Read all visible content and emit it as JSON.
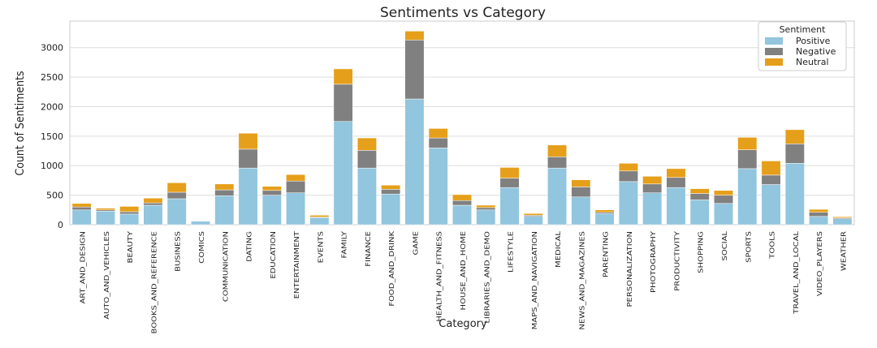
{
  "chart_data": {
    "type": "bar",
    "stacked": true,
    "title": "Sentiments vs Category",
    "xlabel": "Category",
    "ylabel": "Count of Sentiments",
    "ylim": [
      0,
      3450
    ],
    "yticks": [
      0,
      500,
      1000,
      1500,
      2000,
      2500,
      3000
    ],
    "grid": true,
    "legend": {
      "title": "Sentiment",
      "placement": "top-right"
    },
    "categories": [
      "ART_AND_DESIGN",
      "AUTO_AND_VEHICLES",
      "BEAUTY",
      "BOOKS_AND_REFERENCE",
      "BUSINESS",
      "COMICS",
      "COMMUNICATION",
      "DATING",
      "EDUCATION",
      "ENTERTAINMENT",
      "EVENTS",
      "FAMILY",
      "FINANCE",
      "FOOD_AND_DRINK",
      "GAME",
      "HEALTH_AND_FITNESS",
      "HOUSE_AND_HOME",
      "LIBRARIES_AND_DEMO",
      "LIFESTYLE",
      "MAPS_AND_NAVIGATION",
      "MEDICAL",
      "NEWS_AND_MAGAZINES",
      "PARENTING",
      "PERSONALIZATION",
      "PHOTOGRAPHY",
      "PRODUCTIVITY",
      "SHOPPING",
      "SOCIAL",
      "SPORTS",
      "TOOLS",
      "TRAVEL_AND_LOCAL",
      "VIDEO_PLAYERS",
      "WEATHER"
    ],
    "series": [
      {
        "name": "Positive",
        "color": "#92c5de",
        "values": [
          250,
          230,
          180,
          330,
          440,
          60,
          490,
          960,
          500,
          540,
          120,
          1750,
          960,
          520,
          2130,
          1300,
          330,
          250,
          630,
          140,
          960,
          470,
          190,
          730,
          540,
          630,
          420,
          360,
          950,
          680,
          1040,
          140,
          100
        ]
      },
      {
        "name": "Negative",
        "color": "#808080",
        "values": [
          50,
          20,
          40,
          40,
          110,
          5,
          100,
          320,
          80,
          200,
          10,
          630,
          300,
          80,
          1000,
          170,
          80,
          40,
          160,
          20,
          190,
          170,
          20,
          180,
          150,
          170,
          110,
          140,
          320,
          160,
          330,
          70,
          15
        ]
      },
      {
        "name": "Neutral",
        "color": "#e69f1a",
        "values": [
          60,
          30,
          90,
          80,
          160,
          5,
          100,
          270,
          70,
          110,
          30,
          260,
          210,
          70,
          150,
          160,
          100,
          40,
          180,
          30,
          200,
          120,
          40,
          130,
          130,
          150,
          80,
          80,
          210,
          240,
          240,
          50,
          20
        ]
      }
    ]
  }
}
